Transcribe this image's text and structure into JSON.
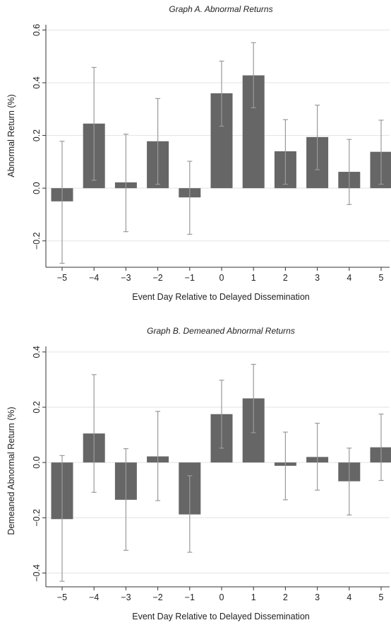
{
  "chart_data": [
    {
      "type": "bar",
      "title": "Graph A. Abnormal Returns",
      "xlabel": "Event Day Relative to Delayed Dissemination",
      "ylabel": "Abnormal Return (%)",
      "categories": [
        "−5",
        "−4",
        "−3",
        "−2",
        "−1",
        "0",
        "1",
        "2",
        "3",
        "4",
        "5"
      ],
      "values": [
        -0.05,
        0.245,
        0.022,
        0.178,
        -0.035,
        0.36,
        0.428,
        0.14,
        0.194,
        0.062,
        0.138
      ],
      "err_low": [
        -0.285,
        0.03,
        -0.165,
        0.015,
        -0.175,
        0.235,
        0.305,
        0.015,
        0.07,
        -0.062,
        0.015
      ],
      "err_high": [
        0.178,
        0.458,
        0.205,
        0.34,
        0.102,
        0.482,
        0.552,
        0.26,
        0.315,
        0.185,
        0.258
      ],
      "yticks": [
        -0.2,
        0.0,
        0.2,
        0.4,
        0.6
      ],
      "ytick_labels": [
        "−0.2",
        "0.0",
        "0.2",
        "0.4",
        "0.6"
      ],
      "ylim": [
        -0.3,
        0.62
      ],
      "grid": true
    },
    {
      "type": "bar",
      "title": "Graph B. Demeaned Abnormal Returns",
      "xlabel": "Event Day Relative to Delayed Dissemination",
      "ylabel": "Demeaned Abnormal Return (%)",
      "categories": [
        "−5",
        "−4",
        "−3",
        "−2",
        "−1",
        "0",
        "1",
        "2",
        "3",
        "4",
        "5"
      ],
      "values": [
        -0.205,
        0.105,
        -0.135,
        0.022,
        -0.188,
        0.175,
        0.232,
        -0.012,
        0.02,
        -0.068,
        0.055
      ],
      "err_low": [
        -0.43,
        -0.108,
        -0.318,
        -0.138,
        -0.325,
        0.052,
        0.108,
        -0.135,
        -0.1,
        -0.19,
        -0.065
      ],
      "err_high": [
        0.025,
        0.318,
        0.05,
        0.185,
        -0.048,
        0.298,
        0.355,
        0.11,
        0.142,
        0.052,
        0.175
      ],
      "yticks": [
        -0.4,
        -0.2,
        0.0,
        0.2,
        0.4
      ],
      "ytick_labels": [
        "−0.4",
        "−0.2",
        "0.0",
        "0.2",
        "0.4"
      ],
      "ylim": [
        -0.45,
        0.42
      ],
      "grid": true
    }
  ]
}
